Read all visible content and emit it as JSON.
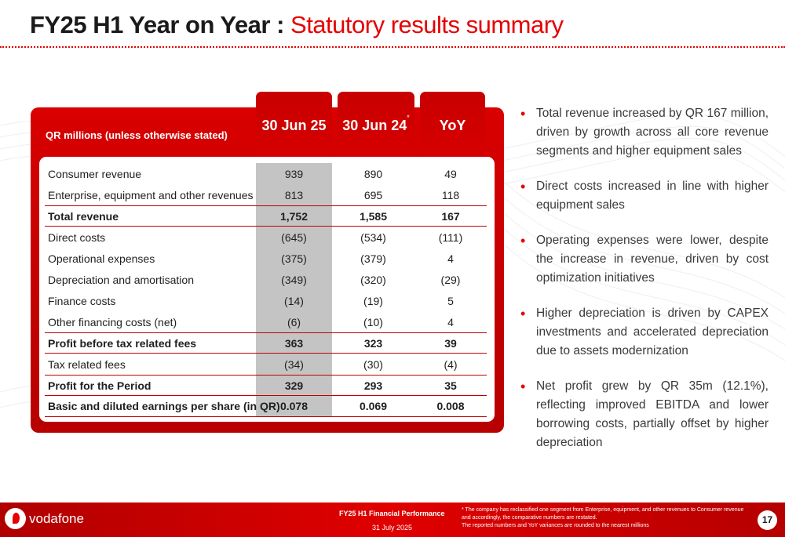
{
  "title": {
    "main": "FY25 H1 Year on Year",
    "separator": " : ",
    "sub": "Statutory results summary"
  },
  "table": {
    "unit_label": "QR millions (unless otherwise stated)",
    "columns": [
      {
        "label": "30 Jun 25",
        "note": ""
      },
      {
        "label": "30 Jun 24",
        "note": "*"
      },
      {
        "label": "YoY",
        "note": ""
      }
    ],
    "rows": [
      {
        "label": "Consumer revenue",
        "v1": "939",
        "v2": "890",
        "v3": "49"
      },
      {
        "label": "Enterprise, equipment and other revenues",
        "v1": "813",
        "v2": "695",
        "v3": "118"
      },
      {
        "label": "Total revenue",
        "v1": "1,752",
        "v2": "1,585",
        "v3": "167"
      },
      {
        "label": "Direct costs",
        "v1": "(645)",
        "v2": "(534)",
        "v3": "(111)"
      },
      {
        "label": "Operational expenses",
        "v1": "(375)",
        "v2": "(379)",
        "v3": "4"
      },
      {
        "label": "Depreciation and amortisation",
        "v1": "(349)",
        "v2": "(320)",
        "v3": "(29)"
      },
      {
        "label": "Finance costs",
        "v1": "(14)",
        "v2": "(19)",
        "v3": "5"
      },
      {
        "label": "Other financing costs  (net)",
        "v1": "(6)",
        "v2": "(10)",
        "v3": "4"
      },
      {
        "label": "Profit before tax related fees",
        "v1": "363",
        "v2": "323",
        "v3": "39"
      },
      {
        "label": "Tax related fees",
        "v1": "(34)",
        "v2": "(30)",
        "v3": "(4)"
      },
      {
        "label": "Profit for the Period",
        "v1": "329",
        "v2": "293",
        "v3": "35"
      },
      {
        "label": "Basic and diluted earnings per share (in QR)",
        "v1": "0.078",
        "v2": "0.069",
        "v3": "0.008"
      }
    ]
  },
  "bullets": [
    "Total revenue increased by QR 167 million, driven by growth across all core revenue segments and higher equipment sales",
    "Direct costs increased in line with higher equipment sales",
    "Operating expenses were lower, despite the increase in revenue, driven by cost optimization initiatives",
    "Higher depreciation is driven by CAPEX investments and accelerated depreciation due to assets modernization",
    "Net profit grew by QR 35m (12.1%), reflecting improved EBITDA and lower borrowing costs, partially offset by higher depreciation"
  ],
  "footer": {
    "brand": "vodafone",
    "title": "FY25 H1 Financial Performance",
    "date": "31 July 2025",
    "note_line1": "* The company has reclassified one segment from Enterprise, equipment, and other revenues to Consumer revenue  and accordingly, the comparative numbers are restated.",
    "note_line2": "The reported numbers and YoY variances are rounded to the nearest millions",
    "page_number": "17"
  },
  "colors": {
    "accent": "#e60000",
    "dark_red": "#c00000",
    "shade": "#c4c4c4"
  }
}
